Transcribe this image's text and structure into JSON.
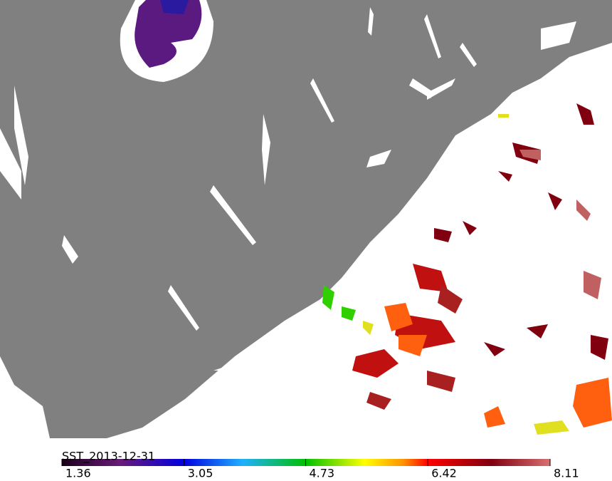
{
  "colorbar": {
    "label": "SST_2013-12-31",
    "range": [
      1.36,
      8.11
    ],
    "ticks": [
      1.36,
      3.05,
      4.73,
      6.42,
      8.11
    ]
  }
}
